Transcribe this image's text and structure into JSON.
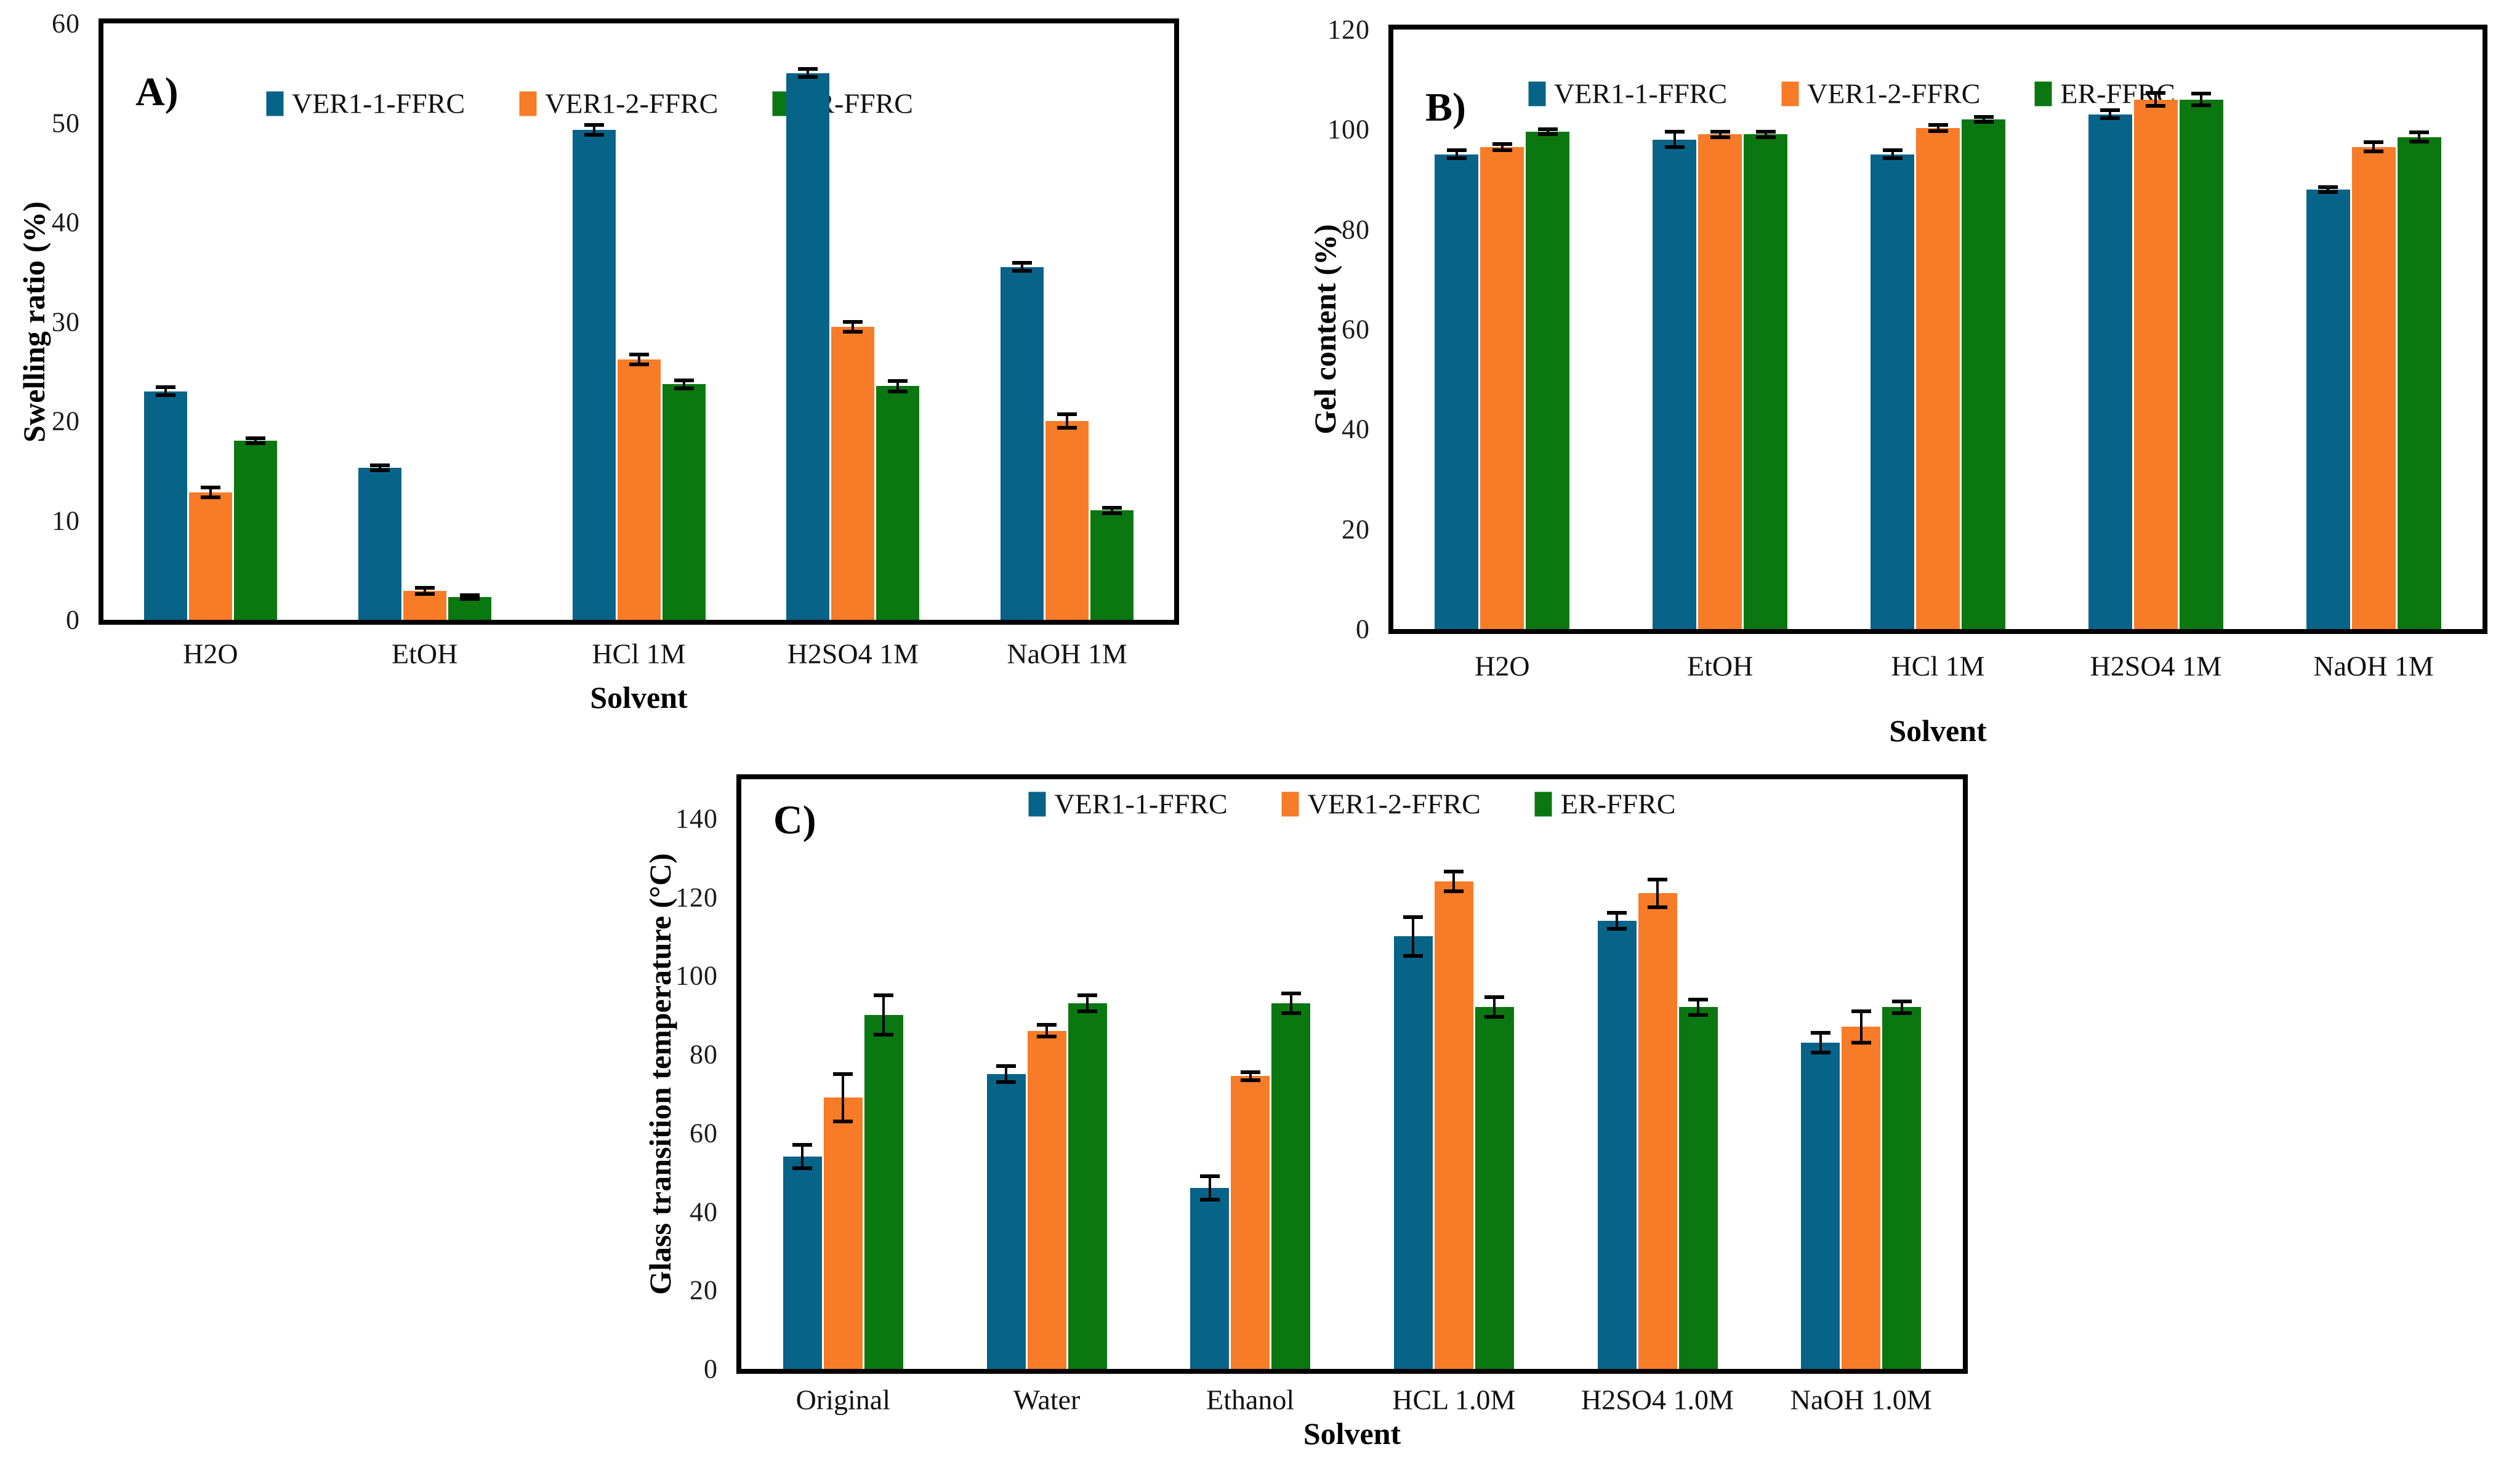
{
  "page": {
    "background": "#ffffff",
    "figure_type": "three-panel grouped bar chart figure"
  },
  "colors": {
    "series1_blue": "#086389",
    "series2_orange": "#F87B28",
    "series3_green": "#0B7710",
    "axis_black": "#000000"
  },
  "chart_data": [
    {
      "id": "A",
      "type": "bar",
      "panel_label": "A)",
      "title": "",
      "xlabel": "Solvent",
      "ylabel": "Swelling ratio (%)",
      "ylim": [
        0,
        60
      ],
      "axis_max": 60,
      "ytick_step": 10,
      "ytick_max": 60,
      "grid": false,
      "legend_position": "top-center",
      "categories": [
        "H2O",
        "EtOH",
        "HCl 1M",
        "H2SO4 1M",
        "NaOH 1M"
      ],
      "series": [
        {
          "name": "VER1-1-FFRC",
          "color": "#086389",
          "values": [
            23.0,
            15.3,
            49.3,
            55.0,
            35.5
          ],
          "errors": [
            0.4,
            0.25,
            0.5,
            0.4,
            0.4
          ]
        },
        {
          "name": "VER1-2-FFRC",
          "color": "#F87B28",
          "values": [
            12.8,
            2.9,
            26.2,
            29.5,
            20.0
          ],
          "errors": [
            0.5,
            0.3,
            0.5,
            0.5,
            0.7
          ]
        },
        {
          "name": "ER-FFRC",
          "color": "#0B7710",
          "values": [
            18.0,
            2.3,
            23.7,
            23.5,
            11.0
          ],
          "errors": [
            0.25,
            0.2,
            0.4,
            0.5,
            0.3
          ]
        }
      ]
    },
    {
      "id": "B",
      "type": "bar",
      "panel_label": "B)",
      "title": "",
      "xlabel": "Solvent",
      "ylabel": "Gel content (%)",
      "ylim": [
        0,
        120
      ],
      "axis_max": 120,
      "ytick_step": 20,
      "ytick_max": 120,
      "grid": false,
      "legend_position": "top-center",
      "categories": [
        "H2O",
        "EtOH",
        "HCl 1M",
        "H2SO4 1M",
        "NaOH 1M"
      ],
      "series": [
        {
          "name": "VER1-1-FFRC",
          "color": "#086389",
          "values": [
            95.0,
            98.0,
            95.0,
            103.0,
            88.0
          ],
          "errors": [
            0.8,
            1.5,
            0.8,
            0.8,
            0.5
          ]
        },
        {
          "name": "VER1-2-FFRC",
          "color": "#F87B28",
          "values": [
            96.5,
            99.0,
            100.3,
            106.0,
            96.5
          ],
          "errors": [
            0.6,
            0.5,
            0.6,
            1.3,
            0.9
          ]
        },
        {
          "name": "ER-FFRC",
          "color": "#0B7710",
          "values": [
            99.5,
            99.0,
            102.0,
            106.0,
            98.5
          ],
          "errors": [
            0.5,
            0.5,
            0.5,
            1.2,
            0.9
          ]
        }
      ]
    },
    {
      "id": "C",
      "type": "bar",
      "panel_label": "C)",
      "title": "",
      "xlabel": "Solvent",
      "ylabel": "Glass transition temperature (°C)",
      "ylim": [
        0,
        150
      ],
      "axis_max": 150,
      "ytick_step": 20,
      "ytick_max": 140,
      "grid": false,
      "legend_position": "top-center",
      "categories": [
        "Original",
        "Water",
        "Ethanol",
        "HCL 1.0M",
        "H2SO4 1.0M",
        "NaOH 1.0M"
      ],
      "series": [
        {
          "name": "VER1-1-FFRC",
          "color": "#086389",
          "values": [
            54,
            75,
            46,
            110,
            114,
            83
          ],
          "errors": [
            3,
            2,
            3,
            5,
            2,
            2.5
          ]
        },
        {
          "name": "VER1-2-FFRC",
          "color": "#F87B28",
          "values": [
            69,
            86,
            74.5,
            124,
            121,
            87
          ],
          "errors": [
            6,
            1.5,
            1,
            2.5,
            3.5,
            4
          ]
        },
        {
          "name": "ER-FFRC",
          "color": "#0B7710",
          "values": [
            90,
            93,
            93,
            92,
            92,
            92
          ],
          "errors": [
            5,
            2,
            2.5,
            2.5,
            2,
            1.5
          ]
        }
      ]
    }
  ]
}
